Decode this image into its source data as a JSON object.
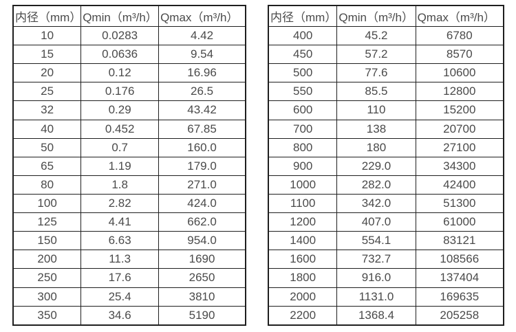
{
  "page": {
    "background": "#ffffff",
    "text_color": "#4a4a4a",
    "border_color": "#1e1e1e"
  },
  "left_table": {
    "headers": [
      "内径（mm）",
      "Qmin（m³/h）",
      "Qmax（m³/h）"
    ],
    "rows": [
      [
        "10",
        "0.0283",
        "4.42"
      ],
      [
        "15",
        "0.0636",
        "9.54"
      ],
      [
        "20",
        "0.12",
        "16.96"
      ],
      [
        "25",
        "0.176",
        "26.5"
      ],
      [
        "32",
        "0.29",
        "43.42"
      ],
      [
        "40",
        "0.452",
        "67.85"
      ],
      [
        "50",
        "0.7",
        "160.0"
      ],
      [
        "65",
        "1.19",
        "179.0"
      ],
      [
        "80",
        "1.8",
        "271.0"
      ],
      [
        "100",
        "2.82",
        "424.0"
      ],
      [
        "125",
        "4.41",
        "662.0"
      ],
      [
        "150",
        "6.63",
        "954.0"
      ],
      [
        "200",
        "11.3",
        "1690"
      ],
      [
        "250",
        "17.6",
        "2650"
      ],
      [
        "300",
        "25.4",
        "3810"
      ],
      [
        "350",
        "34.6",
        "5190"
      ]
    ]
  },
  "right_table": {
    "headers": [
      "内径（mm）",
      "Qmin（m³/h）",
      "Qmax（m³/h）"
    ],
    "rows": [
      [
        "400",
        "45.2",
        "6780"
      ],
      [
        "450",
        "57.2",
        "8570"
      ],
      [
        "500",
        "77.6",
        "10600"
      ],
      [
        "550",
        "85.5",
        "12800"
      ],
      [
        "600",
        "110",
        "15200"
      ],
      [
        "700",
        "138",
        "20700"
      ],
      [
        "800",
        "180",
        "27100"
      ],
      [
        "900",
        "229.0",
        "34300"
      ],
      [
        "1000",
        "282.0",
        "42400"
      ],
      [
        "1100",
        "342.0",
        "51300"
      ],
      [
        "1200",
        "407.0",
        "61000"
      ],
      [
        "1400",
        "554.1",
        "83121"
      ],
      [
        "1600",
        "732.7",
        "108566"
      ],
      [
        "1800",
        "916.0",
        "137404"
      ],
      [
        "2000",
        "1131.0",
        "169635"
      ],
      [
        "2200",
        "1368.4",
        "205258"
      ]
    ]
  }
}
